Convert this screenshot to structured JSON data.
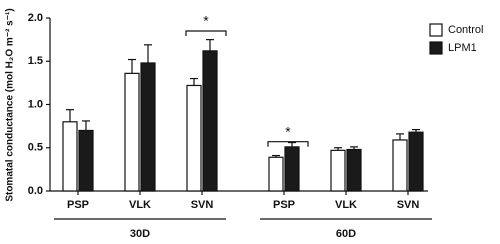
{
  "chart_data": {
    "type": "bar",
    "y_label": "Stomatal conductance (mol H₂O m⁻² s⁻¹)",
    "categories": [
      "PSP",
      "VLK",
      "SVN",
      "PSP",
      "VLK",
      "SVN"
    ],
    "groups": [
      "30D",
      "60D"
    ],
    "series": [
      {
        "name": "Control",
        "color": "#ffffff",
        "values": [
          0.8,
          1.36,
          1.22,
          0.39,
          0.47,
          0.59
        ],
        "errors": [
          0.14,
          0.16,
          0.08,
          0.02,
          0.03,
          0.07
        ]
      },
      {
        "name": "LPM1",
        "color": "#1a1a1a",
        "values": [
          0.7,
          1.48,
          1.62,
          0.51,
          0.48,
          0.68
        ],
        "errors": [
          0.11,
          0.21,
          0.13,
          0.05,
          0.03,
          0.03
        ]
      }
    ],
    "ylim": [
      0,
      2.0
    ],
    "yticks": [
      {
        "value": 0,
        "label": "0.0"
      },
      0.5,
      {
        "value": 1.0,
        "label": "1.0"
      },
      1.5,
      {
        "value": 2.0,
        "label": "2.0"
      }
    ],
    "annotations": [
      {
        "label": "*",
        "category": 2,
        "y": 1.85
      },
      {
        "label": "*",
        "category": 3,
        "y": 0.57
      }
    ]
  }
}
